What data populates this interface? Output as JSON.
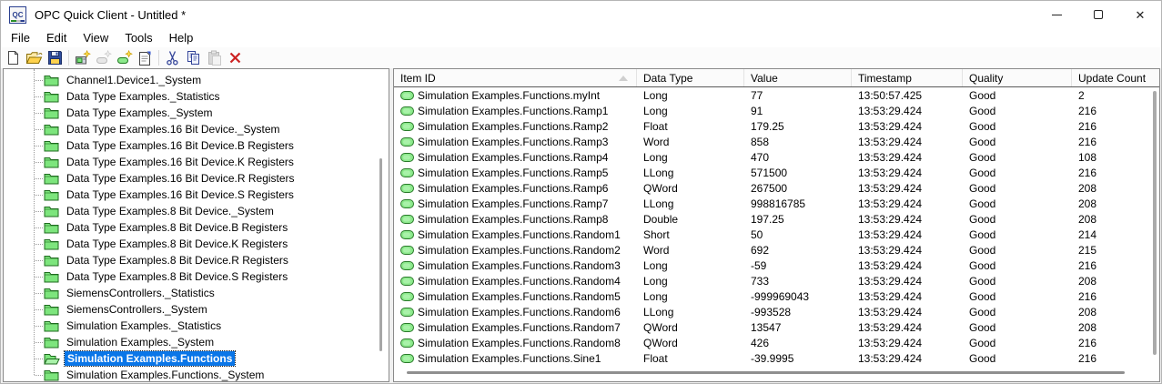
{
  "window": {
    "title": "OPC Quick Client - Untitled *",
    "icon_label": "QC"
  },
  "menu": {
    "items": [
      "File",
      "Edit",
      "View",
      "Tools",
      "Help"
    ]
  },
  "toolbar": {
    "buttons": [
      {
        "name": "new-document",
        "enabled": true,
        "group": 1
      },
      {
        "name": "open",
        "enabled": true,
        "group": 1
      },
      {
        "name": "save",
        "enabled": true,
        "group": 1
      },
      {
        "name": "new-server-connection",
        "enabled": true,
        "group": 2
      },
      {
        "name": "new-group",
        "enabled": false,
        "group": 2
      },
      {
        "name": "new-item",
        "enabled": true,
        "group": 2
      },
      {
        "name": "properties",
        "enabled": true,
        "group": 2
      },
      {
        "name": "cut",
        "enabled": true,
        "group": 3
      },
      {
        "name": "copy",
        "enabled": true,
        "group": 3
      },
      {
        "name": "paste",
        "enabled": false,
        "group": 3
      },
      {
        "name": "delete",
        "enabled": true,
        "group": 3
      }
    ]
  },
  "tree": {
    "items": [
      {
        "label": "Channel1.Device1._System",
        "selected": false
      },
      {
        "label": "Data Type Examples._Statistics",
        "selected": false
      },
      {
        "label": "Data Type Examples._System",
        "selected": false
      },
      {
        "label": "Data Type Examples.16 Bit Device._System",
        "selected": false
      },
      {
        "label": "Data Type Examples.16 Bit Device.B Registers",
        "selected": false
      },
      {
        "label": "Data Type Examples.16 Bit Device.K Registers",
        "selected": false
      },
      {
        "label": "Data Type Examples.16 Bit Device.R Registers",
        "selected": false
      },
      {
        "label": "Data Type Examples.16 Bit Device.S Registers",
        "selected": false
      },
      {
        "label": "Data Type Examples.8 Bit Device._System",
        "selected": false
      },
      {
        "label": "Data Type Examples.8 Bit Device.B Registers",
        "selected": false
      },
      {
        "label": "Data Type Examples.8 Bit Device.K Registers",
        "selected": false
      },
      {
        "label": "Data Type Examples.8 Bit Device.R Registers",
        "selected": false
      },
      {
        "label": "Data Type Examples.8 Bit Device.S Registers",
        "selected": false
      },
      {
        "label": "SiemensControllers._Statistics",
        "selected": false
      },
      {
        "label": "SiemensControllers._System",
        "selected": false
      },
      {
        "label": "Simulation Examples._Statistics",
        "selected": false
      },
      {
        "label": "Simulation Examples._System",
        "selected": false
      },
      {
        "label": "Simulation Examples.Functions",
        "selected": true
      },
      {
        "label": "Simulation Examples.Functions._System",
        "selected": false
      }
    ]
  },
  "table": {
    "columns": [
      "Item ID",
      "Data Type",
      "Value",
      "Timestamp",
      "Quality",
      "Update Count"
    ],
    "sort_column": "Item ID",
    "sort_direction": "ascending",
    "rows": [
      [
        "Simulation Examples.Functions.myInt",
        "Long",
        "77",
        "13:50:57.425",
        "Good",
        "2"
      ],
      [
        "Simulation Examples.Functions.Ramp1",
        "Long",
        "91",
        "13:53:29.424",
        "Good",
        "216"
      ],
      [
        "Simulation Examples.Functions.Ramp2",
        "Float",
        "179.25",
        "13:53:29.424",
        "Good",
        "216"
      ],
      [
        "Simulation Examples.Functions.Ramp3",
        "Word",
        "858",
        "13:53:29.424",
        "Good",
        "216"
      ],
      [
        "Simulation Examples.Functions.Ramp4",
        "Long",
        "470",
        "13:53:29.424",
        "Good",
        "108"
      ],
      [
        "Simulation Examples.Functions.Ramp5",
        "LLong",
        "571500",
        "13:53:29.424",
        "Good",
        "216"
      ],
      [
        "Simulation Examples.Functions.Ramp6",
        "QWord",
        "267500",
        "13:53:29.424",
        "Good",
        "208"
      ],
      [
        "Simulation Examples.Functions.Ramp7",
        "LLong",
        "998816785",
        "13:53:29.424",
        "Good",
        "208"
      ],
      [
        "Simulation Examples.Functions.Ramp8",
        "Double",
        "197.25",
        "13:53:29.424",
        "Good",
        "208"
      ],
      [
        "Simulation Examples.Functions.Random1",
        "Short",
        "50",
        "13:53:29.424",
        "Good",
        "214"
      ],
      [
        "Simulation Examples.Functions.Random2",
        "Word",
        "692",
        "13:53:29.424",
        "Good",
        "215"
      ],
      [
        "Simulation Examples.Functions.Random3",
        "Long",
        "-59",
        "13:53:29.424",
        "Good",
        "216"
      ],
      [
        "Simulation Examples.Functions.Random4",
        "Long",
        "733",
        "13:53:29.424",
        "Good",
        "208"
      ],
      [
        "Simulation Examples.Functions.Random5",
        "Long",
        "-999969043",
        "13:53:29.424",
        "Good",
        "216"
      ],
      [
        "Simulation Examples.Functions.Random6",
        "LLong",
        "-993528",
        "13:53:29.424",
        "Good",
        "208"
      ],
      [
        "Simulation Examples.Functions.Random7",
        "QWord",
        "13547",
        "13:53:29.424",
        "Good",
        "208"
      ],
      [
        "Simulation Examples.Functions.Random8",
        "QWord",
        "426",
        "13:53:29.424",
        "Good",
        "216"
      ],
      [
        "Simulation Examples.Functions.Sine1",
        "Float",
        "-39.9995",
        "13:53:29.424",
        "Good",
        "216"
      ]
    ]
  },
  "colors": {
    "selection_blue": "#0a76e8",
    "folder_green": "#7de57d",
    "tag_green": "#8ce98c",
    "delete_red": "#cc2222"
  }
}
